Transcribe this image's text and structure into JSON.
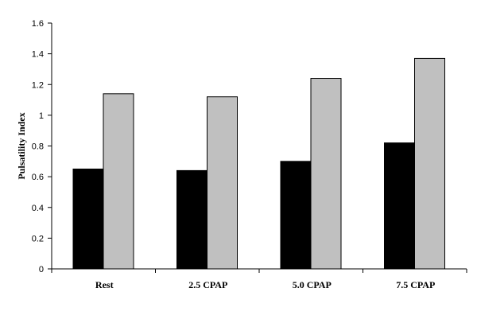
{
  "chart_data": {
    "type": "bar",
    "title": "",
    "xlabel": "",
    "ylabel": "Pulsatility Index",
    "ylim": [
      0,
      1.6
    ],
    "yticks": [
      "0",
      "0.2",
      "0.4",
      "0.6",
      "0.8",
      "1",
      "1.2",
      "1.4",
      "1.6"
    ],
    "categories": [
      "Rest",
      "2.5 CPAP",
      "5.0 CPAP",
      "7.5 CPAP"
    ],
    "series": [
      {
        "values": [
          0.65,
          0.64,
          0.7,
          0.82
        ],
        "color": "#000000"
      },
      {
        "values": [
          1.14,
          1.12,
          1.24,
          1.37
        ],
        "color": "#c0c0c0"
      }
    ],
    "grid": false,
    "legend": "none"
  }
}
